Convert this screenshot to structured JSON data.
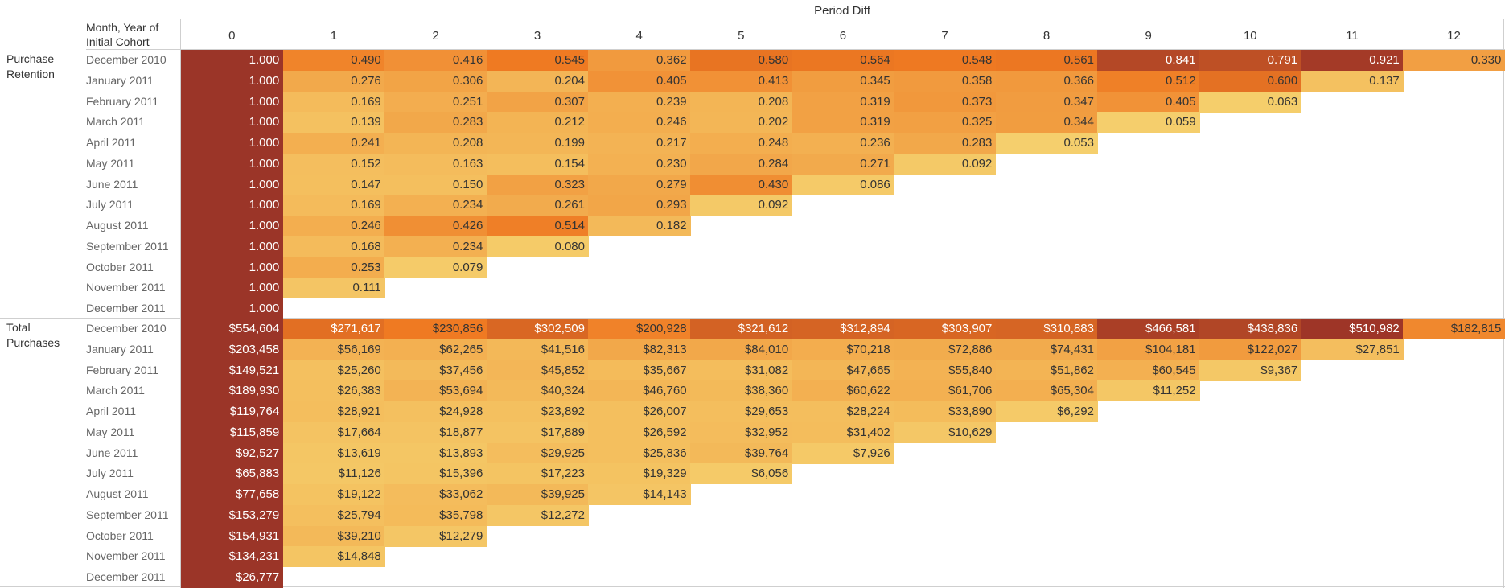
{
  "header": {
    "columns_title": "Period Diff",
    "rows_title": "Month, Year of Initial Cohort"
  },
  "chart_data": {
    "type": "heatmap",
    "x_title": "Period Diff",
    "y_title": "Month, Year of Initial Cohort",
    "columns": [
      "0",
      "1",
      "2",
      "3",
      "4",
      "5",
      "6",
      "7",
      "8",
      "9",
      "10",
      "11",
      "12"
    ],
    "cohorts": [
      "December 2010",
      "January 2011",
      "February 2011",
      "March 2011",
      "April 2011",
      "May 2011",
      "June 2011",
      "July 2011",
      "August 2011",
      "September 2011",
      "October 2011",
      "November 2011",
      "December 2011"
    ],
    "color_scale": {
      "low": "#f5d06d",
      "mid": "#ef7a22",
      "high": "#9e3527",
      "first_column": "#9b3528",
      "dark_text": "#333333",
      "light_text": "#ffffff"
    },
    "panes": [
      {
        "label": "Purchase Retention",
        "format": "decimal",
        "rows": [
          [
            "1.000",
            "0.490",
            "0.416",
            "0.545",
            "0.362",
            "0.580",
            "0.564",
            "0.548",
            "0.561",
            "0.841",
            "0.791",
            "0.921",
            "0.330"
          ],
          [
            "1.000",
            "0.276",
            "0.306",
            "0.204",
            "0.405",
            "0.413",
            "0.345",
            "0.358",
            "0.366",
            "0.512",
            "0.600",
            "0.137"
          ],
          [
            "1.000",
            "0.169",
            "0.251",
            "0.307",
            "0.239",
            "0.208",
            "0.319",
            "0.373",
            "0.347",
            "0.405",
            "0.063"
          ],
          [
            "1.000",
            "0.139",
            "0.283",
            "0.212",
            "0.246",
            "0.202",
            "0.319",
            "0.325",
            "0.344",
            "0.059"
          ],
          [
            "1.000",
            "0.241",
            "0.208",
            "0.199",
            "0.217",
            "0.248",
            "0.236",
            "0.283",
            "0.053"
          ],
          [
            "1.000",
            "0.152",
            "0.163",
            "0.154",
            "0.230",
            "0.284",
            "0.271",
            "0.092"
          ],
          [
            "1.000",
            "0.147",
            "0.150",
            "0.323",
            "0.279",
            "0.430",
            "0.086"
          ],
          [
            "1.000",
            "0.169",
            "0.234",
            "0.261",
            "0.293",
            "0.092"
          ],
          [
            "1.000",
            "0.246",
            "0.426",
            "0.514",
            "0.182"
          ],
          [
            "1.000",
            "0.168",
            "0.234",
            "0.080"
          ],
          [
            "1.000",
            "0.253",
            "0.079"
          ],
          [
            "1.000",
            "0.111"
          ],
          [
            "1.000"
          ]
        ]
      },
      {
        "label": "Total Purchases",
        "format": "currency",
        "rows": [
          [
            "$554,604",
            "$271,617",
            "$230,856",
            "$302,509",
            "$200,928",
            "$321,612",
            "$312,894",
            "$303,907",
            "$310,883",
            "$466,581",
            "$438,836",
            "$510,982",
            "$182,815"
          ],
          [
            "$203,458",
            "$56,169",
            "$62,265",
            "$41,516",
            "$82,313",
            "$84,010",
            "$70,218",
            "$72,886",
            "$74,431",
            "$104,181",
            "$122,027",
            "$27,851"
          ],
          [
            "$149,521",
            "$25,260",
            "$37,456",
            "$45,852",
            "$35,667",
            "$31,082",
            "$47,665",
            "$55,840",
            "$51,862",
            "$60,545",
            "$9,367"
          ],
          [
            "$189,930",
            "$26,383",
            "$53,694",
            "$40,324",
            "$46,760",
            "$38,360",
            "$60,622",
            "$61,706",
            "$65,304",
            "$11,252"
          ],
          [
            "$119,764",
            "$28,921",
            "$24,928",
            "$23,892",
            "$26,007",
            "$29,653",
            "$28,224",
            "$33,890",
            "$6,292"
          ],
          [
            "$115,859",
            "$17,664",
            "$18,877",
            "$17,889",
            "$26,592",
            "$32,952",
            "$31,402",
            "$10,629"
          ],
          [
            "$92,527",
            "$13,619",
            "$13,893",
            "$29,925",
            "$25,836",
            "$39,764",
            "$7,926"
          ],
          [
            "$65,883",
            "$11,126",
            "$15,396",
            "$17,223",
            "$19,329",
            "$6,056"
          ],
          [
            "$77,658",
            "$19,122",
            "$33,062",
            "$39,925",
            "$14,143"
          ],
          [
            "$153,279",
            "$25,794",
            "$35,798",
            "$12,272"
          ],
          [
            "$154,931",
            "$39,210",
            "$12,279"
          ],
          [
            "$134,231",
            "$14,848"
          ],
          [
            "$26,777"
          ]
        ]
      }
    ]
  }
}
